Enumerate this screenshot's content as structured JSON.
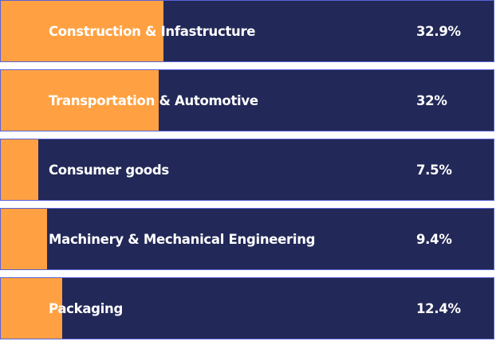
{
  "chart_data": {
    "type": "bar",
    "orientation": "horizontal",
    "categories": [
      "Construction & Infastructure",
      "Transportation & Automotive",
      "Consumer goods",
      "Machinery & Mechanical Engineering",
      "Packaging"
    ],
    "values": [
      32.9,
      32,
      7.5,
      9.4,
      12.4
    ],
    "value_labels": [
      "32.9%",
      "32%",
      "7.5%",
      "9.4%",
      "12.4%"
    ],
    "unit": "%",
    "xlim": [
      0,
      100
    ],
    "grid": false,
    "legend": "none"
  },
  "colors": {
    "bar_fill": "#ffa142",
    "row_background": "#222857",
    "row_border": "#5a63d6",
    "text": "#ffffff"
  }
}
